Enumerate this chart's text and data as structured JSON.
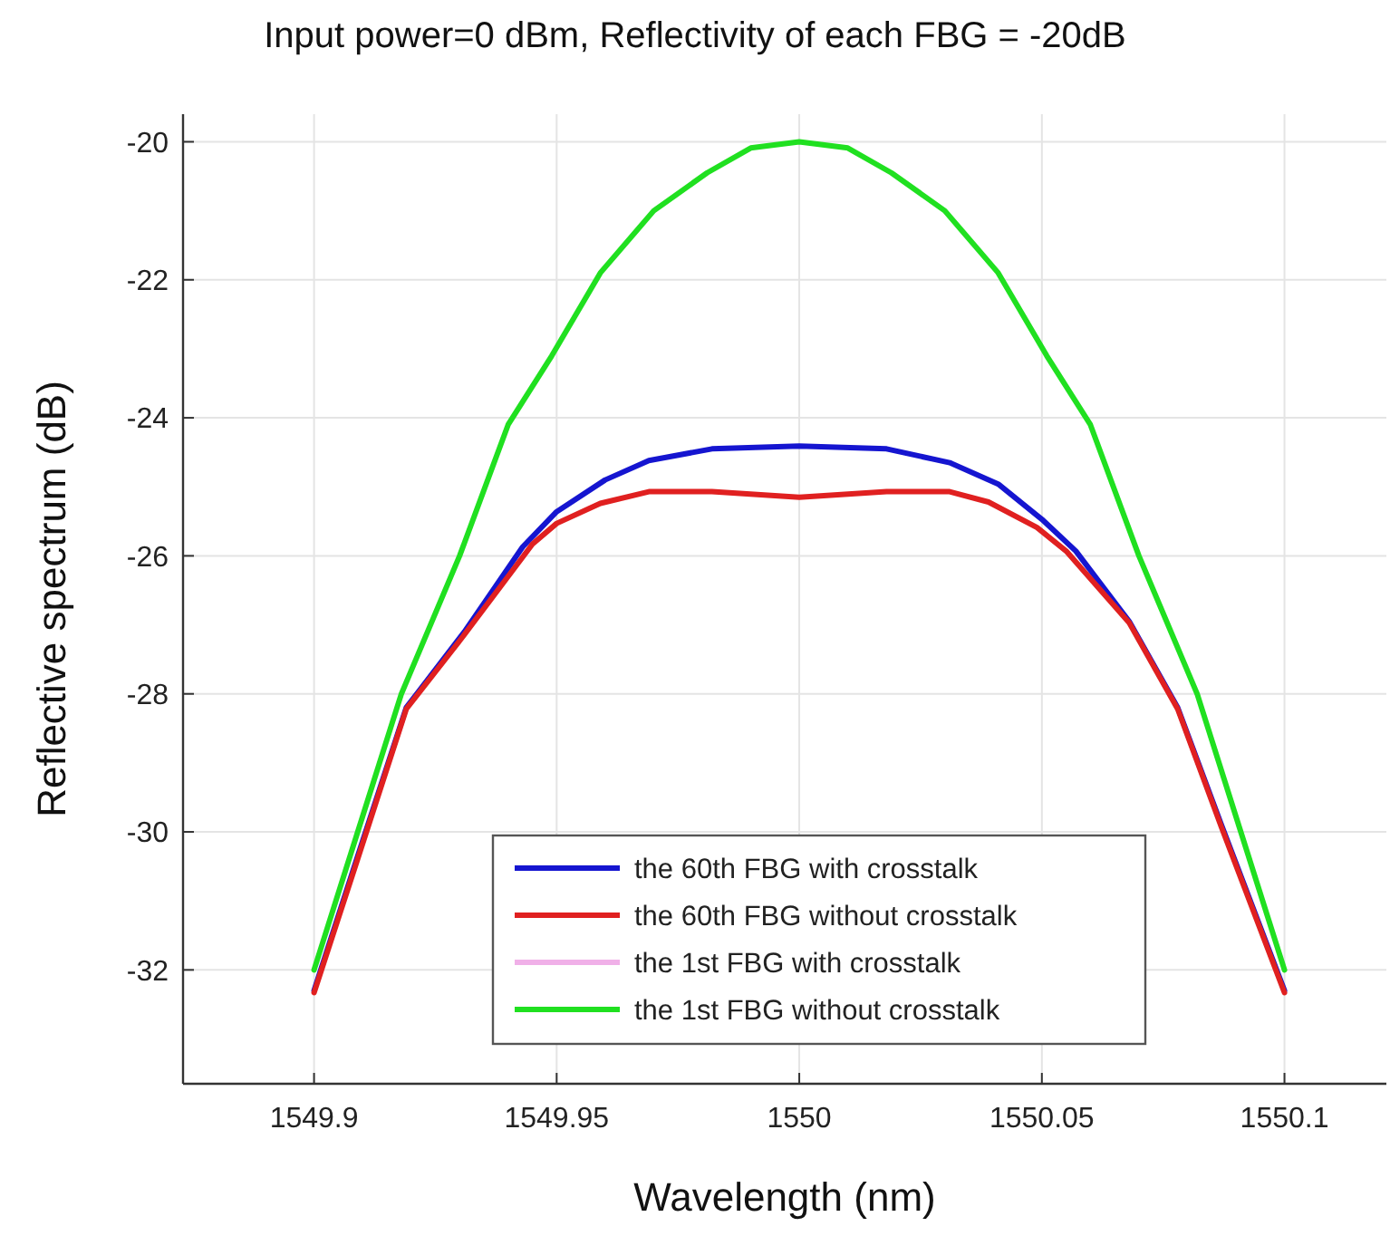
{
  "chart_data": {
    "type": "line",
    "title": "Input power=0 dBm, Reflectivity of each FBG = -20dB",
    "xlabel": "Wavelength (nm)",
    "ylabel": "Reflective spectrum (dB)",
    "xlim": [
      1549.873,
      1550.121
    ],
    "xticks": [
      1549.9,
      1549.95,
      1550,
      1550.05,
      1550.1
    ],
    "ylim": [
      -33.65,
      -19.6
    ],
    "yticks": [
      -20,
      -22,
      -24,
      -26,
      -28,
      -30,
      -32
    ],
    "grid": true,
    "legend": "bottom",
    "line_style": "solid",
    "marker": "none",
    "series": [
      {
        "name": "the 60th FBG with crosstalk",
        "color": "#1515d0",
        "x": [
          1549.9,
          1549.909,
          1549.919,
          1549.931,
          1549.943,
          1549.95,
          1549.96,
          1549.969,
          1549.982,
          1550,
          1550.018,
          1550.031,
          1550.041,
          1550.05,
          1550.057,
          1550.068,
          1550.078,
          1550.087,
          1550.1
        ],
        "values": [
          -32.3,
          -30.35,
          -28.2,
          -27.1,
          -25.87,
          -25.36,
          -24.9,
          -24.62,
          -24.45,
          -24.41,
          -24.45,
          -24.65,
          -24.96,
          -25.47,
          -25.93,
          -26.95,
          -28.2,
          -29.9,
          -32.3
        ]
      },
      {
        "name": "the 60th FBG without crosstalk",
        "color": "#e02020",
        "x": [
          1549.9,
          1549.909,
          1549.919,
          1549.931,
          1549.945,
          1549.95,
          1549.959,
          1549.969,
          1549.982,
          1550,
          1550.018,
          1550.031,
          1550.039,
          1550.049,
          1550.055,
          1550.068,
          1550.078,
          1550.087,
          1550.1
        ],
        "values": [
          -32.33,
          -30.39,
          -28.22,
          -27.14,
          -25.83,
          -25.53,
          -25.24,
          -25.07,
          -25.07,
          -25.15,
          -25.07,
          -25.07,
          -25.22,
          -25.59,
          -25.93,
          -26.97,
          -28.22,
          -29.93,
          -32.33
        ]
      },
      {
        "name": "the 1st FBG with crosstalk",
        "color": "#f0b0e8"
      },
      {
        "name": "the 1st FBG without crosstalk",
        "color": "#20e020",
        "x": [
          1549.9,
          1549.909,
          1549.918,
          1549.93,
          1549.94,
          1549.949,
          1549.959,
          1549.97,
          1549.981,
          1549.99,
          1550,
          1550.01,
          1550.019,
          1550.03,
          1550.041,
          1550.051,
          1550.06,
          1550.07,
          1550.082,
          1550.091,
          1550.1
        ],
        "values": [
          -32,
          -30,
          -28,
          -26,
          -24.1,
          -23.1,
          -21.9,
          -21,
          -20.45,
          -20.09,
          -20,
          -20.09,
          -20.45,
          -21,
          -21.9,
          -23.1,
          -24.1,
          -26,
          -28,
          -30,
          -32
        ]
      }
    ]
  }
}
